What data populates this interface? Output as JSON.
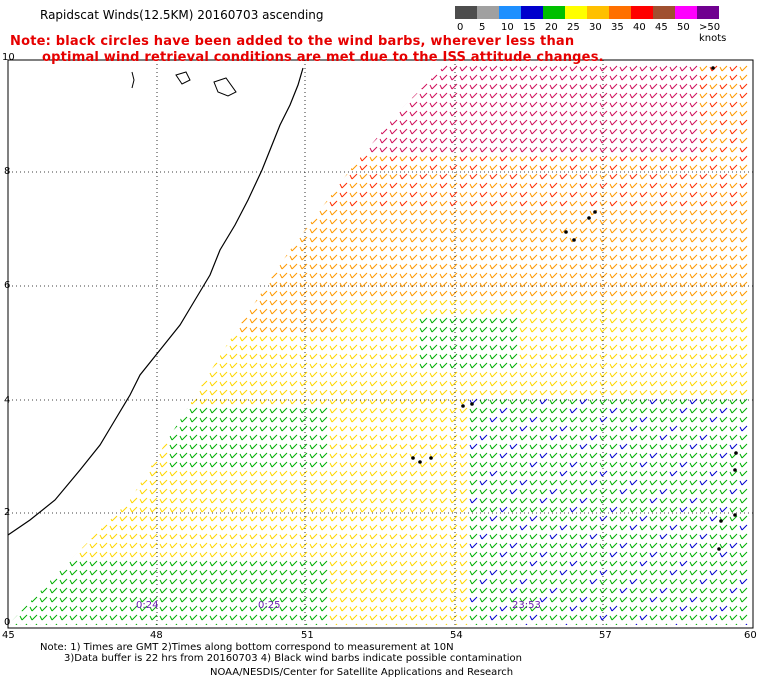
{
  "header": {
    "title": "Rapidscat Winds(12.5KM) 20160703 ascending",
    "note_line1": "Note: black circles have been added to the wind barbs, wherever less than",
    "note_line2": "optimal wind retrieval conditions are met due to the ISS attitude changes."
  },
  "colorbar": {
    "bins": [
      {
        "label": "0",
        "color": "#4d4d4d"
      },
      {
        "label": "5",
        "color": "#a0a0a0"
      },
      {
        "label": "10",
        "color": "#1e90ff"
      },
      {
        "label": "15",
        "color": "#0000cd"
      },
      {
        "label": "20",
        "color": "#00c000"
      },
      {
        "label": "25",
        "color": "#ffff00"
      },
      {
        "label": "30",
        "color": "#ffc000"
      },
      {
        "label": "35",
        "color": "#ff7000"
      },
      {
        "label": "40",
        "color": "#ff0000"
      },
      {
        "label": "45",
        "color": "#a05030"
      },
      {
        "label": "50",
        "color": "#ff00ff"
      },
      {
        "label": ">50 knots",
        "color": "#700090"
      }
    ]
  },
  "axes": {
    "lon_labels": [
      "45",
      "48",
      "51",
      "54",
      "57",
      "60"
    ],
    "lat_labels": [
      "0",
      "2",
      "4",
      "6",
      "8",
      "10"
    ]
  },
  "time_labels": [
    "0:24",
    "0:25",
    "23:53"
  ],
  "footer": {
    "line1": "Note: 1) Times are GMT 2)Times along bottom correspond to measurement at 10N",
    "line2": "3)Data buffer is 22 hrs from 20160703 4) Black wind barbs indicate possible contamination",
    "line3": "NOAA/NESDIS/Center for Satellite Applications and Research"
  },
  "map_colors": {
    "coast": "#000000",
    "grid": "#000000",
    "calm_blue": "#0000cd",
    "green": "#00b000",
    "yellow": "#ffd800",
    "orange": "#ff9a00",
    "red": "#ff3000",
    "magenta": "#d0105a"
  }
}
